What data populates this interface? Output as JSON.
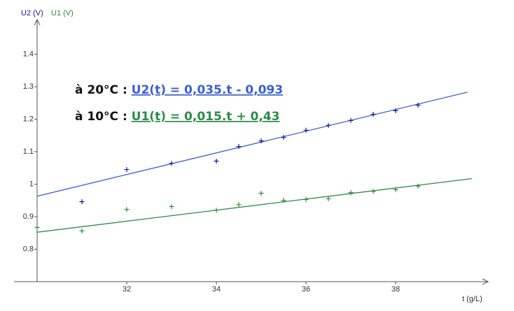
{
  "chart_data": {
    "type": "scatter",
    "y_label": "U2 (V)",
    "y_label2": "U1 (V)",
    "x_label": "t (g/L)",
    "xlim": [
      30,
      40
    ],
    "ylim": [
      0.7,
      1.5
    ],
    "xticks": [
      32,
      34,
      36,
      38
    ],
    "yticks": [
      0.8,
      0.9,
      1,
      1.1,
      1.2,
      1.3,
      1.4
    ],
    "series": [
      {
        "name": "U2 (V)",
        "color": "#1a1a8c",
        "x": [
          31,
          32,
          33,
          34,
          34.5,
          35,
          35.5,
          36,
          36.5,
          37,
          37.5,
          38,
          38.5
        ],
        "values": [
          0.946,
          1.045,
          1.064,
          1.071,
          1.116,
          1.133,
          1.144,
          1.166,
          1.181,
          1.196,
          1.215,
          1.226,
          1.243
        ]
      },
      {
        "name": "U1 (V)",
        "color": "#2e8b3a",
        "x": [
          30,
          31,
          32,
          33,
          34,
          34.5,
          35,
          35.5,
          36,
          36.5,
          37,
          37.5,
          38,
          38.5
        ],
        "values": [
          0.867,
          0.856,
          0.922,
          0.931,
          0.92,
          0.937,
          0.972,
          0.95,
          0.953,
          0.955,
          0.974,
          0.978,
          0.983,
          0.994
        ]
      }
    ],
    "fit_lines": [
      {
        "color": "#3a5fd0",
        "x": [
          30,
          39.6
        ],
        "values": [
          0.963,
          1.283
        ]
      },
      {
        "color": "#2e8b4a",
        "x": [
          30,
          39.7
        ],
        "values": [
          0.852,
          1.017
        ]
      }
    ],
    "annotations": [
      {
        "prefix": "à 20°C : ",
        "formula": "U2(t) = 0,035.t - 0,093",
        "color": "#3a5fd0"
      },
      {
        "prefix": "à 10°C : ",
        "formula": "U1(t) = 0,015.t + 0,43",
        "color": "#2e8b4a"
      }
    ]
  }
}
